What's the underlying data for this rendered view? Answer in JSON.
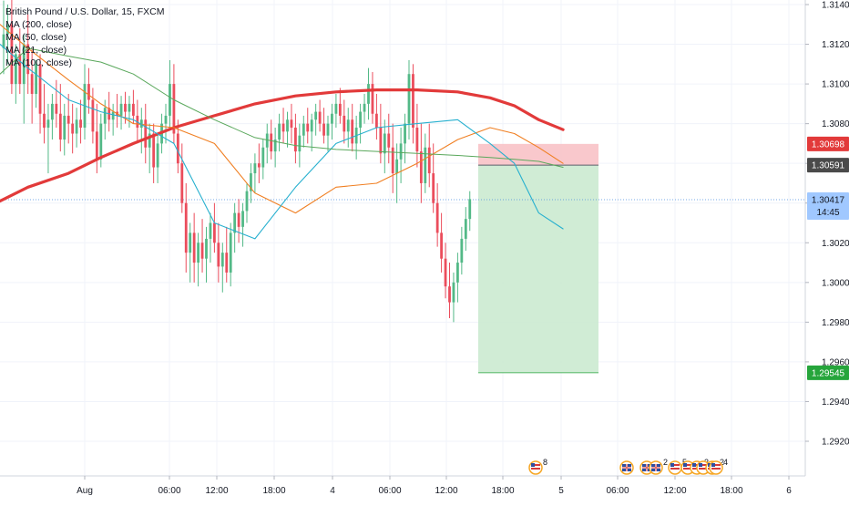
{
  "header": {
    "title": "British Pound / U.S. Dollar, 15, FXCM",
    "indicators": [
      "MA (200, close)",
      "MA (50, close)",
      "MA (21, close)",
      "MA (100, close)"
    ]
  },
  "colors": {
    "up": "#53b987",
    "down": "#eb4d5c",
    "ma200": "#e23a3a",
    "ma50": "#f07f22",
    "ma21": "#27b0cf",
    "ma100": "#5aa85c",
    "stop_zone": "#f8c2c6",
    "target_zone": "#cbead0",
    "current_price_tag": "#a0c8ff",
    "entry_tag": "#4a4a4a",
    "stop_tag": "#e23a3a",
    "target_tag": "#26a53b"
  },
  "chart_data": {
    "type": "candlestick",
    "title": "British Pound / U.S. Dollar, 15, FXCM",
    "ylim": [
      1.2912,
      1.3145
    ],
    "y_ticks": [
      "1.31400",
      "1.31200",
      "1.31000",
      "1.30800",
      "1.30600",
      "1.30400",
      "1.30200",
      "1.30000",
      "1.29800",
      "1.29600",
      "1.29400",
      "1.29200"
    ],
    "x_ticks": [
      "Aug",
      "06:00",
      "12:00",
      "18:00",
      "4",
      "06:00",
      "12:00",
      "18:00",
      "5",
      "06:00",
      "12:00",
      "18:00",
      "6"
    ],
    "price_tags": {
      "stop": "1.30698",
      "entry": "1.30591",
      "current": "1.30417",
      "countdown": "14:45",
      "target": "1.29545"
    },
    "position": {
      "stop": 1.30698,
      "entry": 1.30591,
      "target": 1.29545,
      "current": 1.30417
    },
    "series": [
      {
        "name": "MA (200, close)",
        "values": [
          1.3041,
          1.3048,
          1.3055,
          1.3063,
          1.307,
          1.3078,
          1.3084,
          1.309,
          1.3094,
          1.3096,
          1.3097,
          1.3097,
          1.3096,
          1.3093,
          1.3089,
          1.3082,
          1.3077
        ]
      },
      {
        "name": "MA (50, close)",
        "values": [
          1.313,
          1.3118,
          1.3102,
          1.309,
          1.308,
          1.3078,
          1.307,
          1.3045,
          1.3035,
          1.3048,
          1.305,
          1.306,
          1.3072,
          1.3078,
          1.3075,
          1.3068,
          1.306
        ]
      },
      {
        "name": "MA (21, close)",
        "values": [
          1.312,
          1.3108,
          1.3092,
          1.3086,
          1.3082,
          1.307,
          1.303,
          1.3022,
          1.3048,
          1.307,
          1.3078,
          1.308,
          1.3082,
          1.307,
          1.306,
          1.3035,
          1.3027
        ]
      },
      {
        "name": "MA (100, close)",
        "values": [
          1.3105,
          1.3118,
          1.3114,
          1.3111,
          1.3105,
          1.3092,
          1.3082,
          1.3073,
          1.3069,
          1.3067,
          1.3066,
          1.3065,
          1.3064,
          1.3063,
          1.3062,
          1.3061,
          1.3058
        ]
      }
    ],
    "series_x_index": [
      0,
      6,
      16,
      24,
      32,
      42,
      52,
      62,
      72,
      82,
      92,
      102,
      112,
      120,
      126,
      132,
      138
    ],
    "candles": [
      [
        1.3118,
        1.3142,
        1.3105,
        1.3125
      ],
      [
        1.3125,
        1.314,
        1.311,
        1.313
      ],
      [
        1.313,
        1.3145,
        1.3095,
        1.31
      ],
      [
        1.31,
        1.312,
        1.309,
        1.3115
      ],
      [
        1.3115,
        1.3128,
        1.3095,
        1.31
      ],
      [
        1.31,
        1.3125,
        1.308,
        1.312
      ],
      [
        1.312,
        1.3135,
        1.3095,
        1.3105
      ],
      [
        1.3105,
        1.3118,
        1.308,
        1.3095
      ],
      [
        1.3095,
        1.3112,
        1.3088,
        1.311
      ],
      [
        1.311,
        1.3115,
        1.3075,
        1.3085
      ],
      [
        1.3085,
        1.31,
        1.307,
        1.3078
      ],
      [
        1.3078,
        1.309,
        1.3055,
        1.3082
      ],
      [
        1.3082,
        1.3095,
        1.3072,
        1.309
      ],
      [
        1.309,
        1.3102,
        1.3078,
        1.3085
      ],
      [
        1.3085,
        1.31,
        1.3066,
        1.3072
      ],
      [
        1.3072,
        1.309,
        1.3064,
        1.3084
      ],
      [
        1.3084,
        1.3095,
        1.307,
        1.308
      ],
      [
        1.308,
        1.309,
        1.3065,
        1.3075
      ],
      [
        1.3075,
        1.3088,
        1.3068,
        1.3082
      ],
      [
        1.3082,
        1.3092,
        1.307,
        1.3078
      ],
      [
        1.3078,
        1.311,
        1.3072,
        1.31
      ],
      [
        1.31,
        1.3108,
        1.3085,
        1.3092
      ],
      [
        1.3092,
        1.3098,
        1.307,
        1.3076
      ],
      [
        1.3076,
        1.309,
        1.3055,
        1.3062
      ],
      [
        1.3062,
        1.3085,
        1.3058,
        1.308
      ],
      [
        1.308,
        1.3092,
        1.3072,
        1.3088
      ],
      [
        1.3088,
        1.3096,
        1.3076,
        1.3082
      ],
      [
        1.3082,
        1.309,
        1.3074,
        1.3086
      ],
      [
        1.3086,
        1.3095,
        1.3078,
        1.3084
      ],
      [
        1.3084,
        1.3094,
        1.3077,
        1.309
      ],
      [
        1.309,
        1.3096,
        1.308,
        1.3086
      ],
      [
        1.3086,
        1.3094,
        1.3078,
        1.309
      ],
      [
        1.309,
        1.3097,
        1.308,
        1.3084
      ],
      [
        1.3084,
        1.3092,
        1.307,
        1.3078
      ],
      [
        1.3078,
        1.3088,
        1.3065,
        1.3082
      ],
      [
        1.3082,
        1.309,
        1.306,
        1.3068
      ],
      [
        1.3068,
        1.308,
        1.3055,
        1.3075
      ],
      [
        1.3075,
        1.308,
        1.305,
        1.3058
      ],
      [
        1.3058,
        1.3075,
        1.305,
        1.307
      ],
      [
        1.307,
        1.3085,
        1.3065,
        1.308
      ],
      [
        1.308,
        1.309,
        1.307,
        1.3084
      ],
      [
        1.3084,
        1.3112,
        1.3078,
        1.31
      ],
      [
        1.31,
        1.311,
        1.307,
        1.3075
      ],
      [
        1.3075,
        1.3082,
        1.3055,
        1.306
      ],
      [
        1.306,
        1.307,
        1.3035,
        1.304
      ],
      [
        1.304,
        1.305,
        1.3005,
        1.3015
      ],
      [
        1.3015,
        1.303,
        1.3,
        1.3025
      ],
      [
        1.3025,
        1.3035,
        1.3,
        1.301
      ],
      [
        1.301,
        1.3025,
        1.2998,
        1.302
      ],
      [
        1.302,
        1.3032,
        1.3005,
        1.3012
      ],
      [
        1.3012,
        1.3028,
        1.3,
        1.3022
      ],
      [
        1.3022,
        1.3035,
        1.301,
        1.303
      ],
      [
        1.303,
        1.304,
        1.3015,
        1.302
      ],
      [
        1.302,
        1.303,
        1.3,
        1.3008
      ],
      [
        1.3008,
        1.302,
        1.2995,
        1.3015
      ],
      [
        1.3015,
        1.3028,
        1.3,
        1.3005
      ],
      [
        1.3005,
        1.303,
        1.2998,
        1.3025
      ],
      [
        1.3025,
        1.304,
        1.3015,
        1.3035
      ],
      [
        1.3035,
        1.3042,
        1.302,
        1.3028
      ],
      [
        1.3028,
        1.304,
        1.3018,
        1.3036
      ],
      [
        1.3036,
        1.305,
        1.303,
        1.3046
      ],
      [
        1.3046,
        1.306,
        1.304,
        1.3055
      ],
      [
        1.3055,
        1.3065,
        1.3045,
        1.306
      ],
      [
        1.306,
        1.307,
        1.305,
        1.3058
      ],
      [
        1.3058,
        1.3072,
        1.3052,
        1.3068
      ],
      [
        1.3068,
        1.308,
        1.306,
        1.3075
      ],
      [
        1.3075,
        1.3082,
        1.3062,
        1.3066
      ],
      [
        1.3066,
        1.3078,
        1.3058,
        1.3072
      ],
      [
        1.3072,
        1.3085,
        1.3066,
        1.308
      ],
      [
        1.308,
        1.3088,
        1.307,
        1.3076
      ],
      [
        1.3076,
        1.3086,
        1.3068,
        1.3082
      ],
      [
        1.3082,
        1.309,
        1.307,
        1.3078
      ],
      [
        1.3078,
        1.3085,
        1.306,
        1.3066
      ],
      [
        1.3066,
        1.308,
        1.3058,
        1.3074
      ],
      [
        1.3074,
        1.3084,
        1.3068,
        1.308
      ],
      [
        1.308,
        1.3088,
        1.307,
        1.3076
      ],
      [
        1.3076,
        1.3085,
        1.3066,
        1.3082
      ],
      [
        1.3082,
        1.309,
        1.3074,
        1.3086
      ],
      [
        1.3086,
        1.3092,
        1.3076,
        1.308
      ],
      [
        1.308,
        1.3088,
        1.307,
        1.3074
      ],
      [
        1.3074,
        1.3084,
        1.3066,
        1.308
      ],
      [
        1.308,
        1.309,
        1.3072,
        1.3085
      ],
      [
        1.3085,
        1.3095,
        1.3078,
        1.309
      ],
      [
        1.309,
        1.3098,
        1.308,
        1.3084
      ],
      [
        1.3084,
        1.3092,
        1.307,
        1.3076
      ],
      [
        1.3076,
        1.3088,
        1.3068,
        1.3082
      ],
      [
        1.3082,
        1.309,
        1.3066,
        1.307
      ],
      [
        1.307,
        1.3084,
        1.3062,
        1.3078
      ],
      [
        1.3078,
        1.309,
        1.307,
        1.3086
      ],
      [
        1.3086,
        1.3095,
        1.308,
        1.309
      ],
      [
        1.309,
        1.3108,
        1.3082,
        1.31
      ],
      [
        1.31,
        1.3106,
        1.308,
        1.3085
      ],
      [
        1.3085,
        1.3095,
        1.3072,
        1.3078
      ],
      [
        1.3078,
        1.309,
        1.306,
        1.3065
      ],
      [
        1.3065,
        1.3082,
        1.3055,
        1.3075
      ],
      [
        1.3075,
        1.3085,
        1.306,
        1.3068
      ],
      [
        1.3068,
        1.308,
        1.3045,
        1.3055
      ],
      [
        1.3055,
        1.307,
        1.304,
        1.3062
      ],
      [
        1.3062,
        1.3078,
        1.305,
        1.307
      ],
      [
        1.307,
        1.3085,
        1.306,
        1.308
      ],
      [
        1.308,
        1.3112,
        1.3072,
        1.3105
      ],
      [
        1.3105,
        1.311,
        1.307,
        1.3078
      ],
      [
        1.3078,
        1.309,
        1.3058,
        1.3066
      ],
      [
        1.3066,
        1.308,
        1.304,
        1.305
      ],
      [
        1.305,
        1.3075,
        1.3045,
        1.3068
      ],
      [
        1.3068,
        1.308,
        1.3048,
        1.3055
      ],
      [
        1.3055,
        1.307,
        1.3035,
        1.304
      ],
      [
        1.304,
        1.305,
        1.3018,
        1.3025
      ],
      [
        1.3025,
        1.3035,
        1.3005,
        1.3012
      ],
      [
        1.3012,
        1.302,
        1.2992,
        1.2998
      ],
      [
        1.2998,
        1.301,
        1.2982,
        1.299
      ],
      [
        1.299,
        1.3005,
        1.298,
        1.3
      ],
      [
        1.3,
        1.3015,
        1.299,
        1.301
      ],
      [
        1.301,
        1.3028,
        1.3004,
        1.3022
      ],
      [
        1.3022,
        1.3038,
        1.3016,
        1.3032
      ],
      [
        1.3032,
        1.3046,
        1.3026,
        1.3042
      ]
    ],
    "events": [
      {
        "flags": [
          "us"
        ],
        "count": "8",
        "slot": 0
      },
      {
        "flags": [
          "uk"
        ],
        "count": "",
        "slot": 1
      },
      {
        "flags": [
          "uk",
          "uk"
        ],
        "count": "2",
        "slot": 2
      },
      {
        "flags": [
          "us"
        ],
        "count": "5",
        "slot": 3
      },
      {
        "flags": [
          "us",
          "us"
        ],
        "count": "2",
        "slot": 4
      },
      {
        "flags": [
          "us",
          "us"
        ],
        "count": "2",
        "slot": 5
      },
      {
        "flags": [
          "us"
        ],
        "count": "4",
        "slot": 6
      }
    ]
  }
}
